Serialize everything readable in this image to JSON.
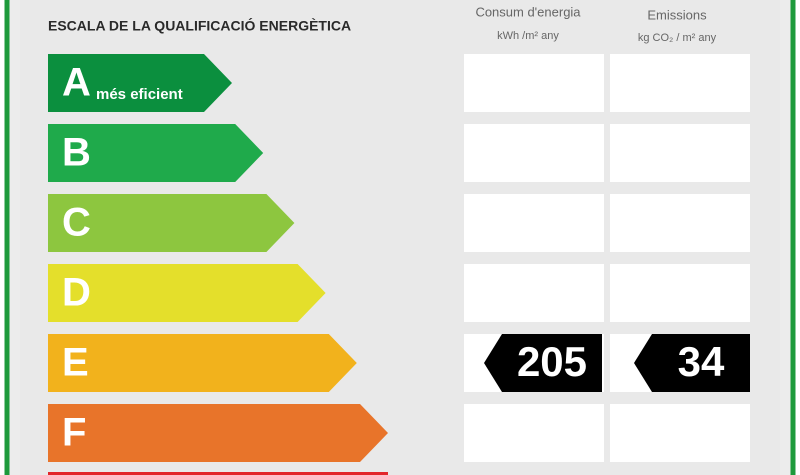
{
  "header": {
    "title": "ESCALA DE LA QUALIFICACIÓ ENERGÈTICA",
    "columns": [
      {
        "title": "Consum d'energia",
        "unit": "kWh /m² any"
      },
      {
        "title": "Emissions",
        "unit": "kg CO₂ / m² any"
      }
    ]
  },
  "rows": [
    {
      "letter": "A",
      "label": "més eficient",
      "color": "#0b8f3e"
    },
    {
      "letter": "B",
      "color": "#1faa4b"
    },
    {
      "letter": "C",
      "color": "#8dc63f"
    },
    {
      "letter": "D",
      "color": "#e4df2b"
    },
    {
      "letter": "E",
      "color": "#f2b21c",
      "consumption": 205,
      "emissions": 34
    },
    {
      "letter": "F",
      "color": "#e8742a"
    }
  ]
}
